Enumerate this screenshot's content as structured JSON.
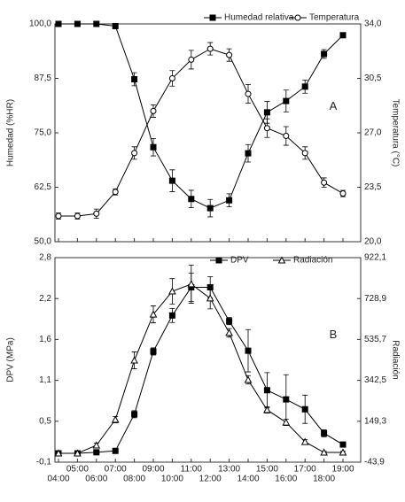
{
  "chart_data": [
    {
      "type": "line",
      "panel_label": "A",
      "ylabel": "Humedad (%HR)",
      "y2label": "Temperatura (°C)",
      "ylim": [
        50,
        100
      ],
      "yticks": [
        {
          "value": 50,
          "label": "50,0"
        },
        {
          "value": 62.5,
          "label": "62,5"
        },
        {
          "value": 75,
          "label": "75,0"
        },
        {
          "value": 87.5,
          "label": "87,5"
        },
        {
          "value": 100,
          "label": "100,0"
        }
      ],
      "y2lim": [
        20,
        34
      ],
      "y2ticks": [
        {
          "value": 20,
          "label": "20,0"
        },
        {
          "value": 23.5,
          "label": "23,5"
        },
        {
          "value": 27,
          "label": "27,0"
        },
        {
          "value": 30.5,
          "label": "30,5"
        },
        {
          "value": 34,
          "label": "34,0"
        }
      ],
      "legend": "top",
      "series": [
        {
          "name": "Humedad relativa",
          "color": "#000000",
          "marker": "square",
          "filled": true,
          "values": [
            100,
            100,
            100,
            99.5,
            87.3,
            71.7,
            64,
            59.8,
            57.7,
            59.5,
            70.3,
            79.7,
            82.3,
            85.6,
            93.1,
            97.4
          ],
          "errors": [
            0.3,
            0.3,
            0.3,
            0.3,
            1.5,
            2,
            2.5,
            2,
            2,
            1.5,
            2,
            2.5,
            2.5,
            1.5,
            1,
            0.5
          ]
        },
        {
          "name": "Temperatura",
          "color": "#000000",
          "marker": "circle",
          "filled": false,
          "axis": "y2",
          "values": [
            21.65,
            21.65,
            21.8,
            23.2,
            25.7,
            28.4,
            30.5,
            31.7,
            32.4,
            32,
            29.5,
            27.3,
            26.8,
            25.7,
            23.8,
            23.1
          ],
          "errors": [
            0.2,
            0.2,
            0.3,
            0.2,
            0.4,
            0.4,
            0.5,
            0.6,
            0.4,
            0.4,
            0.6,
            0.6,
            0.6,
            0.4,
            0.3,
            0.2
          ]
        }
      ]
    },
    {
      "type": "line",
      "panel_label": "B",
      "ylabel": "DPV (MPa)",
      "y2label": "Radiación",
      "categories": [
        "04:00",
        "05:00",
        "06:00",
        "07:00",
        "08:00",
        "09:00",
        "10:00",
        "11:00",
        "12:00",
        "13:00",
        "14:00",
        "15:00",
        "16:00",
        "17:00",
        "18:00",
        "19:00"
      ],
      "ylim": [
        -0.1,
        2.8
      ],
      "yticks": [
        {
          "value": -0.1,
          "label": "-0,1"
        },
        {
          "value": 0.48,
          "label": "0,5"
        },
        {
          "value": 1.06,
          "label": "1,1"
        },
        {
          "value": 1.64,
          "label": "1,6"
        },
        {
          "value": 2.22,
          "label": "2,2"
        },
        {
          "value": 2.8,
          "label": "2,8"
        }
      ],
      "y2lim": [
        -43.9,
        922.1
      ],
      "y2ticks": [
        {
          "value": -43.9,
          "label": "-43,9"
        },
        {
          "value": 149.3,
          "label": "149,3"
        },
        {
          "value": 342.5,
          "label": "342,5"
        },
        {
          "value": 535.7,
          "label": "535,7"
        },
        {
          "value": 728.9,
          "label": "728,9"
        },
        {
          "value": 922.1,
          "label": "922,1"
        }
      ],
      "legend": "top",
      "series": [
        {
          "name": "DPV",
          "color": "#000000",
          "marker": "square",
          "filled": true,
          "values": [
            0.025,
            0.025,
            0.04,
            0.06,
            0.58,
            1.47,
            1.98,
            2.38,
            2.38,
            1.9,
            1.48,
            0.92,
            0.79,
            0.65,
            0.31,
            0.15
          ],
          "errors": [
            0.01,
            0.01,
            0.01,
            0.01,
            0.05,
            0.05,
            0.1,
            0.2,
            0.15,
            0.05,
            0.3,
            0.25,
            0.35,
            0.2,
            0.05,
            0.03
          ]
        },
        {
          "name": "Radiación",
          "color": "#000000",
          "marker": "triangle",
          "filled": false,
          "axis": "y2",
          "values": [
            -2,
            -2,
            35.6,
            157,
            437,
            654,
            763,
            797,
            730,
            567,
            345,
            203,
            144,
            52,
            2,
            2
          ],
          "errors": [
            5,
            5,
            10,
            15,
            40,
            40,
            60,
            90,
            50,
            20,
            20,
            15,
            15,
            10,
            5,
            5
          ]
        }
      ]
    }
  ]
}
